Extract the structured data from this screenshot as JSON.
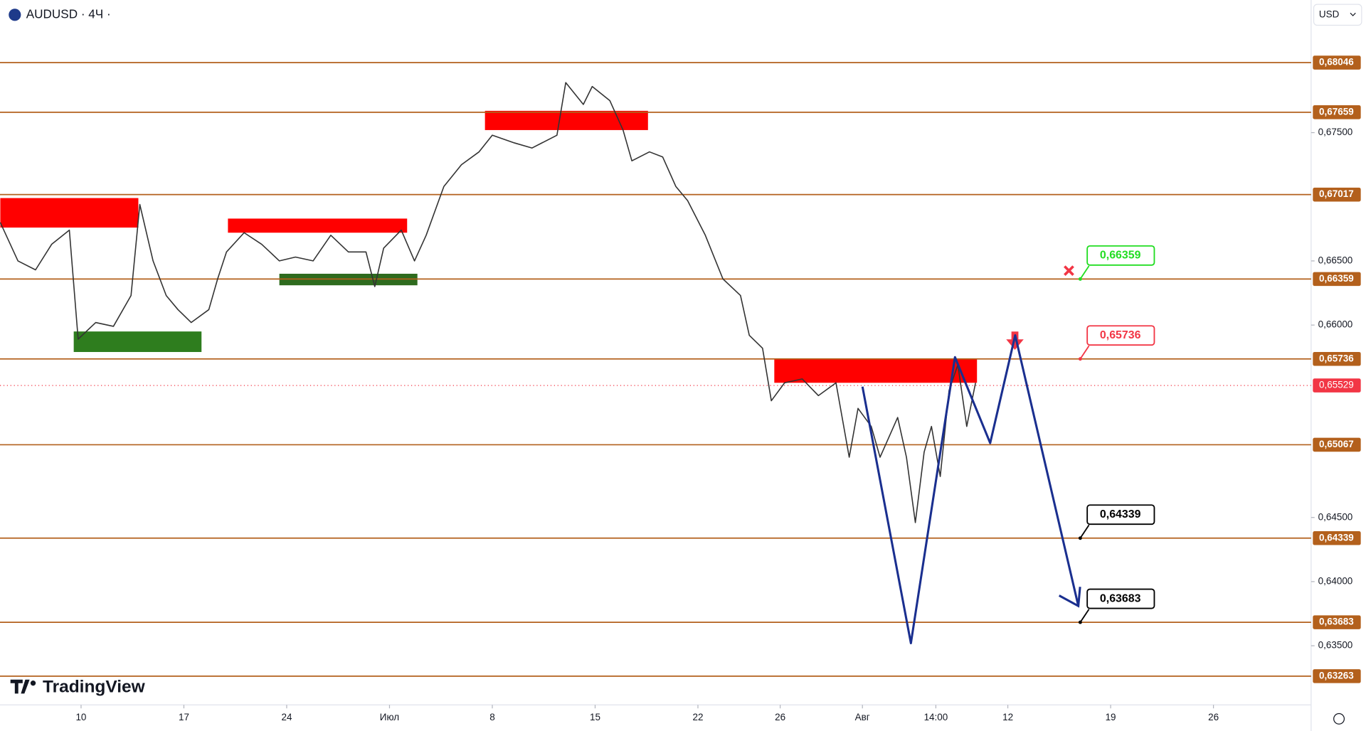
{
  "chart_data": {
    "type": "line",
    "title": "AUDUSD · 4Ч ·",
    "currency": "USD",
    "brand": "TradingView",
    "x": [
      4.5,
      5.7,
      6.9,
      8.0,
      9.2,
      9.8,
      11.0,
      12.2,
      13.4,
      14.0,
      14.9,
      15.8,
      16.6,
      17.5,
      18.7,
      19.3,
      19.9,
      21.1,
      22.3,
      23.5,
      24.6,
      25.8,
      27.0,
      28.2,
      29.4,
      30.0,
      30.6,
      31.8,
      32.7,
      33.5,
      34.7,
      35.9,
      37.1,
      38.0,
      39.5,
      40.7,
      42.4,
      43.0,
      44.2,
      44.8,
      46.0,
      46.9,
      47.5,
      48.7,
      49.6,
      50.5,
      51.3,
      52.5,
      53.7,
      54.9,
      55.5,
      56.4,
      57.0,
      57.9,
      59.1,
      60.2,
      61.4,
      62.3,
      62.9,
      63.8,
      64.4,
      65.6,
      66.2,
      66.8,
      67.4,
      67.9,
      68.5,
      69.1,
      69.7,
      70.3,
      70.9
    ],
    "series": [
      {
        "name": "AUDUSD",
        "color": "#333333",
        "values": [
          0.668,
          0.665,
          0.6643,
          0.6663,
          0.6674,
          0.6589,
          0.6602,
          0.6599,
          0.6623,
          0.6694,
          0.665,
          0.6623,
          0.6612,
          0.6602,
          0.6612,
          0.6636,
          0.6657,
          0.6672,
          0.6663,
          0.665,
          0.6653,
          0.665,
          0.667,
          0.6657,
          0.6657,
          0.663,
          0.666,
          0.6674,
          0.665,
          0.667,
          0.6708,
          0.6725,
          0.6735,
          0.6748,
          0.6742,
          0.6738,
          0.6748,
          0.6789,
          0.6772,
          0.6786,
          0.6775,
          0.6752,
          0.6728,
          0.6735,
          0.6731,
          0.6708,
          0.6697,
          0.667,
          0.6636,
          0.6623,
          0.6592,
          0.6582,
          0.6541,
          0.6555,
          0.6558,
          0.6545,
          0.6555,
          0.6497,
          0.6535,
          0.6521,
          0.6497,
          0.6528,
          0.6497,
          0.6446,
          0.6501,
          0.6521,
          0.6482,
          0.6549,
          0.6569,
          0.6521,
          0.6555
        ]
      }
    ],
    "forecast": {
      "color": "#1a2f8f",
      "x": [
        63.2,
        66.5,
        69.5,
        71.9,
        73.6,
        77.9
      ],
      "values": [
        0.6552,
        0.6352,
        0.6575,
        0.6508,
        0.6592,
        0.6381
      ]
    },
    "zones": [
      {
        "color": "#ff0000",
        "x": [
          4.5,
          13.9
        ],
        "values": [
          0.6699,
          0.6676
        ]
      },
      {
        "color": "#ff0000",
        "x": [
          20.0,
          32.2
        ],
        "values": [
          0.6683,
          0.6672
        ]
      },
      {
        "color": "#ff0000",
        "x": [
          37.5,
          48.6
        ],
        "values": [
          0.6767,
          0.6752
        ]
      },
      {
        "color": "#ff0000",
        "x": [
          57.2,
          71.0
        ],
        "values": [
          0.6574,
          0.6555
        ]
      },
      {
        "color": "#2e7d1e",
        "x": [
          9.5,
          18.2
        ],
        "values": [
          0.6595,
          0.6579
        ]
      },
      {
        "color": "#2e6b1e",
        "x": [
          23.5,
          32.9
        ],
        "values": [
          0.664,
          0.6631
        ]
      }
    ],
    "levels": [
      {
        "value": 0.68046,
        "label": "0,68046"
      },
      {
        "value": 0.67659,
        "label": "0,67659"
      },
      {
        "value": 0.67017,
        "label": "0,67017"
      },
      {
        "value": 0.66359,
        "label": "0,66359"
      },
      {
        "value": 0.65736,
        "label": "0,65736"
      },
      {
        "value": 0.65067,
        "label": "0,65067"
      },
      {
        "value": 0.64339,
        "label": "0,64339"
      },
      {
        "value": 0.63683,
        "label": "0,63683"
      },
      {
        "value": 0.63263,
        "label": "0,63263"
      }
    ],
    "level_color": "#b3601c",
    "current_price": {
      "value": 0.65529,
      "label": "0,65529",
      "color": "#f23645"
    },
    "annotations": [
      {
        "value": 0.66359,
        "label": "0,66359",
        "color": "#22dd22"
      },
      {
        "value": 0.65736,
        "label": "0,65736",
        "color": "#f23645"
      },
      {
        "value": 0.64339,
        "label": "0,64339",
        "color": "#000000"
      },
      {
        "value": 0.63683,
        "label": "0,63683",
        "color": "#000000"
      }
    ],
    "xlim": [
      4.48,
      93.75
    ],
    "ylim": [
      0.63039,
      0.68534
    ],
    "xticks": [
      {
        "value": 10,
        "label": "10"
      },
      {
        "value": 17,
        "label": "17"
      },
      {
        "value": 24,
        "label": "24"
      },
      {
        "value": 31,
        "label": "Июл"
      },
      {
        "value": 38,
        "label": "8"
      },
      {
        "value": 45,
        "label": "15"
      },
      {
        "value": 52,
        "label": "22"
      },
      {
        "value": 57.6,
        "label": "26"
      },
      {
        "value": 63.2,
        "label": "Авг"
      },
      {
        "value": 68.2,
        "label": "14:00"
      },
      {
        "value": 73.1,
        "label": "12"
      },
      {
        "value": 80.1,
        "label": "19"
      },
      {
        "value": 87.1,
        "label": "26"
      }
    ],
    "yticks": [
      {
        "value": 0.675,
        "label": "0,67500"
      },
      {
        "value": 0.665,
        "label": "0,66500"
      },
      {
        "value": 0.66,
        "label": "0,66000"
      },
      {
        "value": 0.645,
        "label": "0,64500"
      },
      {
        "value": 0.64,
        "label": "0,64000"
      },
      {
        "value": 0.635,
        "label": "0,63500"
      }
    ]
  }
}
